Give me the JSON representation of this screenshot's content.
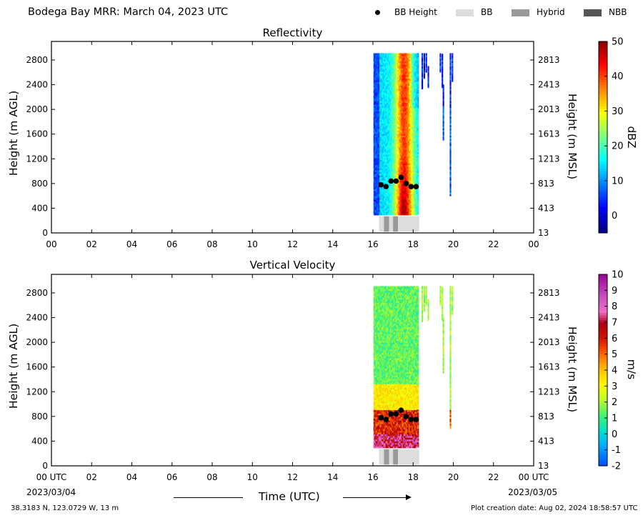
{
  "header": {
    "title": "Bodega Bay MRR:  March 04, 2023 UTC",
    "legend": [
      {
        "label": "BB Height",
        "kind": "dot",
        "color": "#000000"
      },
      {
        "label": "BB",
        "kind": "swatch",
        "color": "#dddddd"
      },
      {
        "label": "Hybrid",
        "kind": "swatch",
        "color": "#999999"
      },
      {
        "label": "NBB",
        "kind": "swatch",
        "color": "#555555"
      }
    ]
  },
  "footer": {
    "location": "38.3183 N, 123.0729 W, 13 m",
    "creation": "Plot creation date: Aug 02, 2024 18:58:57 UTC",
    "start_date": "2023/03/04",
    "end_date": "2023/03/05",
    "xlabel": "Time (UTC)"
  },
  "chart_data": [
    {
      "type": "heatmap",
      "title": "Reflectivity",
      "ylabel": "Height (m AGL)",
      "ylabel_right": "Height (m MSL)",
      "colorbar_label": "dBZ",
      "x_ticks": [
        "00",
        "02",
        "04",
        "06",
        "08",
        "10",
        "12",
        "14",
        "16",
        "18",
        "20",
        "22",
        "00"
      ],
      "x_tick_values": [
        0,
        2,
        4,
        6,
        8,
        10,
        12,
        14,
        16,
        18,
        20,
        22,
        24
      ],
      "xlim": [
        0,
        24
      ],
      "y_ticks": [
        0,
        400,
        800,
        1200,
        1600,
        2000,
        2400,
        2800
      ],
      "y_ticks_right": [
        13,
        413,
        813,
        1213,
        1613,
        2013,
        2413,
        2813
      ],
      "ylim": [
        0,
        3100
      ],
      "colorbar_ticks": [
        0,
        10,
        20,
        30,
        40,
        50
      ],
      "colorbar_range": [
        -5,
        50
      ],
      "colormap": "jet",
      "bb_height": [
        {
          "x": 16.4,
          "y": 780
        },
        {
          "x": 16.65,
          "y": 750
        },
        {
          "x": 16.9,
          "y": 840
        },
        {
          "x": 17.15,
          "y": 840
        },
        {
          "x": 17.4,
          "y": 900
        },
        {
          "x": 17.65,
          "y": 800
        },
        {
          "x": 17.9,
          "y": 750
        },
        {
          "x": 18.15,
          "y": 750
        }
      ],
      "bb_type": [
        {
          "x0": 16.3,
          "x1": 16.55,
          "kind": "BB"
        },
        {
          "x0": 16.55,
          "x1": 16.8,
          "kind": "Hybrid"
        },
        {
          "x0": 16.8,
          "x1": 17.0,
          "kind": "BB"
        },
        {
          "x0": 17.0,
          "x1": 17.25,
          "kind": "Hybrid"
        },
        {
          "x0": 17.25,
          "x1": 18.3,
          "kind": "BB"
        }
      ]
    },
    {
      "type": "heatmap",
      "title": "Vertical Velocity",
      "ylabel": "Height (m AGL)",
      "ylabel_right": "Height (m MSL)",
      "colorbar_label": "m/s",
      "x_ticks": [
        "00 UTC",
        "02",
        "04",
        "06",
        "08",
        "10",
        "12",
        "14",
        "16",
        "18",
        "20",
        "22",
        "00 UTC"
      ],
      "x_tick_values": [
        0,
        2,
        4,
        6,
        8,
        10,
        12,
        14,
        16,
        18,
        20,
        22,
        24
      ],
      "xlim": [
        0,
        24
      ],
      "y_ticks": [
        0,
        400,
        800,
        1200,
        1600,
        2000,
        2400,
        2800
      ],
      "y_ticks_right": [
        13,
        413,
        813,
        1213,
        1613,
        2013,
        2413,
        2813
      ],
      "ylim": [
        0,
        3100
      ],
      "colorbar_ticks": [
        -2,
        -1,
        0,
        1,
        2,
        3,
        4,
        5,
        6,
        7,
        8,
        9,
        10
      ],
      "colorbar_range": [
        -2,
        10
      ],
      "bb_height": [
        {
          "x": 16.4,
          "y": 780
        },
        {
          "x": 16.65,
          "y": 750
        },
        {
          "x": 16.9,
          "y": 840
        },
        {
          "x": 17.15,
          "y": 840
        },
        {
          "x": 17.4,
          "y": 900
        },
        {
          "x": 17.65,
          "y": 800
        },
        {
          "x": 17.9,
          "y": 750
        },
        {
          "x": 18.15,
          "y": 750
        }
      ],
      "bb_type": [
        {
          "x0": 16.3,
          "x1": 16.55,
          "kind": "BB"
        },
        {
          "x0": 16.55,
          "x1": 16.8,
          "kind": "Hybrid"
        },
        {
          "x0": 16.8,
          "x1": 17.0,
          "kind": "BB"
        },
        {
          "x0": 17.0,
          "x1": 17.25,
          "kind": "Hybrid"
        },
        {
          "x0": 17.25,
          "x1": 18.3,
          "kind": "BB"
        }
      ]
    }
  ]
}
